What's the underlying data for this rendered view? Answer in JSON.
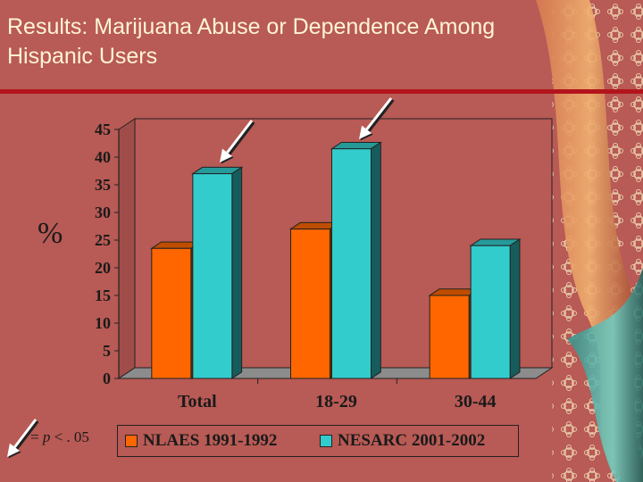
{
  "slide": {
    "title_line1": "Results:  Marijuana Abuse or Dependence  Among",
    "title_line2": "Hispanic Users",
    "percent_label": "%",
    "footnote_eq": "= ",
    "footnote_p": "p",
    "footnote_rest": " < . 05",
    "colors": {
      "background": "#b85a55",
      "title_text": "#fff4d6",
      "rule": "#b3141c"
    }
  },
  "chart_data": {
    "type": "bar",
    "categories": [
      "Total",
      "18-29",
      "30-44"
    ],
    "series": [
      {
        "name": "NLAES 1991-1992",
        "values": [
          23.5,
          27,
          15
        ],
        "color": "#ff6600"
      },
      {
        "name": "NESARC 2001-2002",
        "values": [
          37,
          41.5,
          24
        ],
        "color": "#33cccc"
      }
    ],
    "ylim": [
      0,
      45
    ],
    "yticks": [
      "45",
      "40",
      "35",
      "30",
      "25",
      "20",
      "15",
      "10",
      "5",
      "0"
    ],
    "grid": false,
    "legend_position": "bottom",
    "significant_markers": "arrows on NESARC bars for Total and 18-29"
  }
}
